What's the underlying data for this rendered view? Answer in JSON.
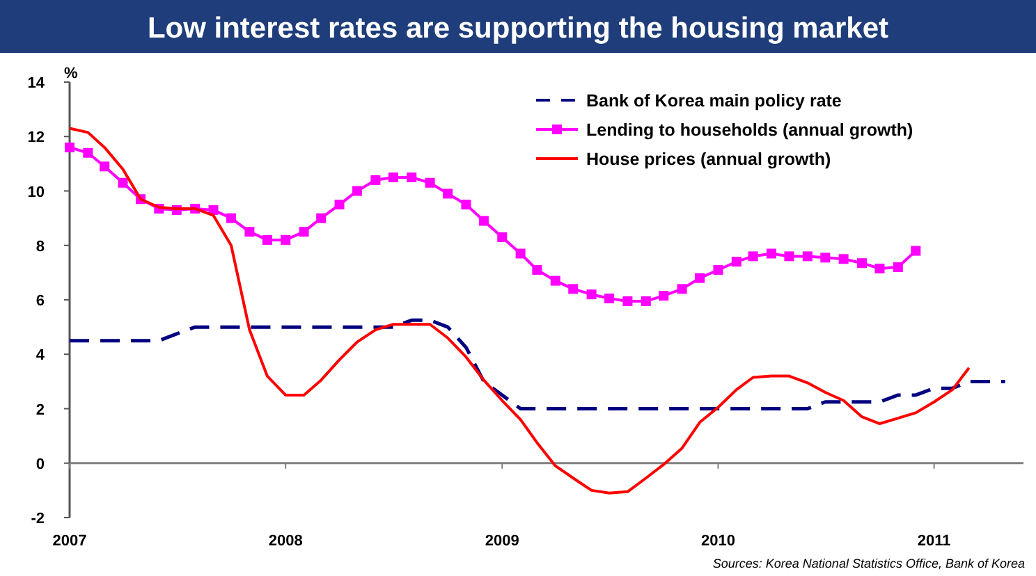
{
  "chart_data": {
    "type": "line",
    "title": "Low interest rates are supporting the housing market",
    "ylabel": "%",
    "x": [
      "2007-01",
      "2007-02",
      "2007-03",
      "2007-04",
      "2007-05",
      "2007-06",
      "2007-07",
      "2007-08",
      "2007-09",
      "2007-10",
      "2007-11",
      "2007-12",
      "2008-01",
      "2008-02",
      "2008-03",
      "2008-04",
      "2008-05",
      "2008-06",
      "2008-07",
      "2008-08",
      "2008-09",
      "2008-10",
      "2008-11",
      "2008-12",
      "2009-01",
      "2009-02",
      "2009-03",
      "2009-04",
      "2009-05",
      "2009-06",
      "2009-07",
      "2009-08",
      "2009-09",
      "2009-10",
      "2009-11",
      "2009-12",
      "2010-01",
      "2010-02",
      "2010-03",
      "2010-04",
      "2010-05",
      "2010-06",
      "2010-07",
      "2010-08",
      "2010-09",
      "2010-10",
      "2010-11",
      "2010-12",
      "2011-01",
      "2011-02",
      "2011-03",
      "2011-04",
      "2011-05"
    ],
    "series": [
      {
        "name": "Bank of Korea main policy rate",
        "color": "#000080",
        "line_style": "dashed",
        "marker": "none",
        "values": [
          4.5,
          4.5,
          4.5,
          4.5,
          4.5,
          4.5,
          4.75,
          5.0,
          5.0,
          5.0,
          5.0,
          5.0,
          5.0,
          5.0,
          5.0,
          5.0,
          5.0,
          5.0,
          5.0,
          5.25,
          5.25,
          5.0,
          4.25,
          3.0,
          2.5,
          2.0,
          2.0,
          2.0,
          2.0,
          2.0,
          2.0,
          2.0,
          2.0,
          2.0,
          2.0,
          2.0,
          2.0,
          2.0,
          2.0,
          2.0,
          2.0,
          2.0,
          2.25,
          2.25,
          2.25,
          2.25,
          2.5,
          2.5,
          2.75,
          2.75,
          3.0,
          3.0,
          3.0
        ]
      },
      {
        "name": "Lending to households (annual growth)",
        "color": "#ff00ff",
        "line_style": "solid",
        "marker": "square",
        "values": [
          11.6,
          11.4,
          10.9,
          10.3,
          9.7,
          9.35,
          9.3,
          9.35,
          9.3,
          9.0,
          8.5,
          8.2,
          8.2,
          8.5,
          9.0,
          9.5,
          10.0,
          10.4,
          10.5,
          10.5,
          10.3,
          9.9,
          9.5,
          8.9,
          8.3,
          7.7,
          7.1,
          6.7,
          6.4,
          6.2,
          6.05,
          5.95,
          5.95,
          6.15,
          6.4,
          6.8,
          7.1,
          7.4,
          7.6,
          7.7,
          7.6,
          7.6,
          7.55,
          7.5,
          7.35,
          7.15,
          7.2,
          7.8,
          null,
          null,
          null,
          null,
          null
        ]
      },
      {
        "name": "House prices (annual growth)",
        "color": "#ff0000",
        "line_style": "solid",
        "marker": "none",
        "values": [
          12.3,
          12.15,
          11.6,
          10.8,
          9.7,
          9.4,
          9.35,
          9.35,
          9.1,
          8.0,
          4.9,
          3.2,
          2.5,
          2.5,
          3.05,
          3.8,
          4.45,
          4.9,
          5.1,
          5.1,
          5.1,
          4.6,
          3.9,
          3.05,
          2.3,
          1.6,
          0.75,
          -0.1,
          -0.55,
          -1.0,
          -1.1,
          -1.05,
          -0.55,
          -0.05,
          0.55,
          1.5,
          2.05,
          2.7,
          3.15,
          3.2,
          3.2,
          2.95,
          2.6,
          2.3,
          1.7,
          1.45,
          1.65,
          1.85,
          2.25,
          2.7,
          3.5,
          null,
          null
        ]
      }
    ],
    "xlim": [
      "2007-01",
      "2011-06"
    ],
    "xticks": [
      "2007",
      "2008",
      "2009",
      "2010",
      "2011"
    ],
    "ylim": [
      -2,
      14
    ],
    "yticks": [
      -2,
      0,
      2,
      4,
      6,
      8,
      10,
      12,
      14
    ],
    "legend": "top right",
    "annotations": [
      "Sources: Korea National Statistics Office, Bank of Korea"
    ]
  }
}
